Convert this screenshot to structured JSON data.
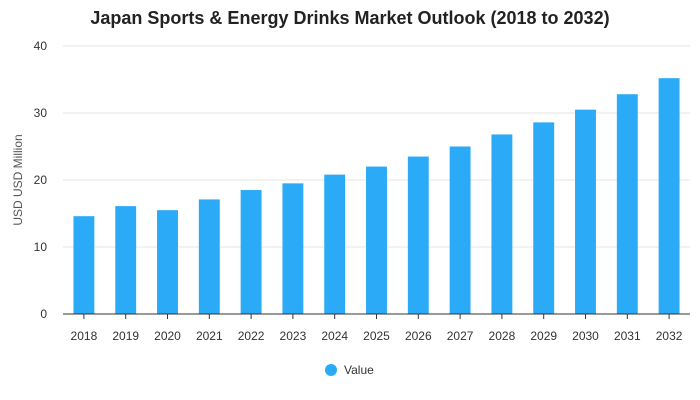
{
  "chart_data": {
    "type": "bar",
    "title": "Japan Sports & Energy Drinks Market Outlook (2018 to 2032)",
    "xlabel": "",
    "ylabel": "USD USD Million",
    "categories": [
      "2018",
      "2019",
      "2020",
      "2021",
      "2022",
      "2023",
      "2024",
      "2025",
      "2026",
      "2027",
      "2028",
      "2029",
      "2030",
      "2031",
      "2032"
    ],
    "series": [
      {
        "name": "Value",
        "color": "#2aaaf7",
        "values": [
          14.6,
          16.1,
          15.5,
          17.1,
          18.5,
          19.5,
          20.8,
          22.0,
          23.5,
          25.0,
          26.8,
          28.6,
          30.5,
          32.8,
          35.2
        ]
      }
    ],
    "ylim": [
      0,
      40
    ],
    "yticks": [
      0,
      10,
      20,
      30,
      40
    ],
    "grid": true,
    "legend": "bottom-center"
  }
}
